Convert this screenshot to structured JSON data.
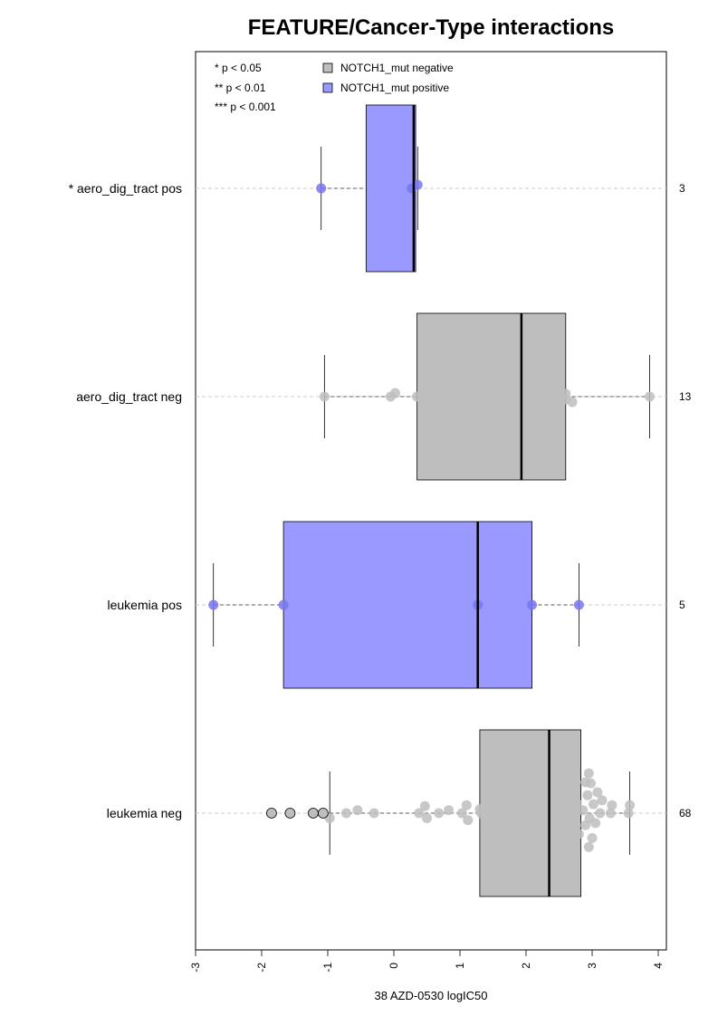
{
  "chart_data": {
    "type": "boxplot",
    "title": "FEATURE/Cancer-Type interactions",
    "xlabel": "38 AZD-0530 logIC50",
    "xlim": [
      -3,
      4
    ],
    "x_ticks": [
      -3,
      -2,
      -1,
      0,
      1,
      2,
      3,
      4
    ],
    "legend": {
      "placement": "top-left",
      "significance": [
        "* p < 0.05",
        "** p < 0.01",
        "*** p < 0.001"
      ],
      "groups": [
        {
          "label": "NOTCH1_mut negative",
          "color": "#bebebe"
        },
        {
          "label": "NOTCH1_mut positive",
          "color": "#9999ff"
        }
      ]
    },
    "boxes": [
      {
        "label": "* aero_dig_tract pos",
        "n": "3",
        "group": "NOTCH1_mut positive",
        "color": "#9999ff",
        "point_color": "#7777ee",
        "min": -1.1,
        "q1": -0.42,
        "median": 0.3,
        "q3": 0.33,
        "max": 0.36,
        "points": [
          {
            "x": -1.1,
            "dy": 0
          },
          {
            "x": 0.27,
            "dy": 0
          },
          {
            "x": 0.36,
            "dy": 0.35
          }
        ],
        "outliers": []
      },
      {
        "label": "aero_dig_tract neg",
        "n": "13",
        "group": "NOTCH1_mut negative",
        "color": "#bebebe",
        "point_color": "#bebebe",
        "min": -1.05,
        "q1": 0.35,
        "median": 1.93,
        "q3": 2.6,
        "max": 3.87,
        "points": [
          {
            "x": -1.05,
            "dy": 0
          },
          {
            "x": -0.05,
            "dy": 0
          },
          {
            "x": 0.02,
            "dy": 0.35
          },
          {
            "x": 0.35,
            "dy": 0
          },
          {
            "x": 1.38,
            "dy": 0
          },
          {
            "x": 1.64,
            "dy": 0
          },
          {
            "x": 1.93,
            "dy": 0
          },
          {
            "x": 2.12,
            "dy": 0
          },
          {
            "x": 2.6,
            "dy": 0.3
          },
          {
            "x": 2.6,
            "dy": -0.3
          },
          {
            "x": 2.53,
            "dy": 0
          },
          {
            "x": 2.7,
            "dy": -0.55
          },
          {
            "x": 3.87,
            "dy": 0
          }
        ],
        "outliers": []
      },
      {
        "label": "leukemia pos",
        "n": "5",
        "group": "NOTCH1_mut positive",
        "color": "#9999ff",
        "point_color": "#7777ee",
        "min": -2.73,
        "q1": -1.67,
        "median": 1.27,
        "q3": 2.09,
        "max": 2.8,
        "points": [
          {
            "x": -2.73,
            "dy": 0
          },
          {
            "x": -1.67,
            "dy": 0
          },
          {
            "x": 1.27,
            "dy": 0
          },
          {
            "x": 2.09,
            "dy": 0
          },
          {
            "x": 2.8,
            "dy": 0
          }
        ],
        "outliers": []
      },
      {
        "label": "leukemia neg",
        "n": "68",
        "group": "NOTCH1_mut negative",
        "color": "#bebebe",
        "point_color": "#bebebe",
        "min": -0.97,
        "q1": 1.3,
        "median": 2.35,
        "q3": 2.83,
        "max": 3.57,
        "outliers": [
          {
            "x": -1.85,
            "dy": 0
          },
          {
            "x": -1.57,
            "dy": 0
          },
          {
            "x": -1.22,
            "dy": 0
          },
          {
            "x": -1.07,
            "dy": 0
          }
        ],
        "points": [
          {
            "x": -0.97,
            "dy": -0.5
          },
          {
            "x": -0.72,
            "dy": 0
          },
          {
            "x": -0.55,
            "dy": 0.3
          },
          {
            "x": -0.3,
            "dy": 0
          },
          {
            "x": 0.38,
            "dy": 0
          },
          {
            "x": 0.47,
            "dy": 0.7
          },
          {
            "x": 0.5,
            "dy": -0.5
          },
          {
            "x": 0.68,
            "dy": 0
          },
          {
            "x": 0.83,
            "dy": 0.3
          },
          {
            "x": 1.03,
            "dy": 0
          },
          {
            "x": 1.1,
            "dy": 0.8
          },
          {
            "x": 1.12,
            "dy": -0.7
          },
          {
            "x": 1.3,
            "dy": 0.4
          },
          {
            "x": 1.32,
            "dy": 0
          },
          {
            "x": 1.38,
            "dy": -0.6
          },
          {
            "x": 1.42,
            "dy": 1.4
          },
          {
            "x": 1.48,
            "dy": 0
          },
          {
            "x": 1.65,
            "dy": -1.2
          },
          {
            "x": 1.7,
            "dy": 0.2
          },
          {
            "x": 1.78,
            "dy": 0.8
          },
          {
            "x": 1.85,
            "dy": -1.2
          },
          {
            "x": 1.9,
            "dy": 1.6
          },
          {
            "x": 1.97,
            "dy": 0
          },
          {
            "x": 2.05,
            "dy": -0.6
          },
          {
            "x": 2.1,
            "dy": 0.5
          },
          {
            "x": 2.15,
            "dy": -1.2
          },
          {
            "x": 2.2,
            "dy": 1.8
          },
          {
            "x": 2.25,
            "dy": 0
          },
          {
            "x": 2.3,
            "dy": -0.6
          },
          {
            "x": 2.36,
            "dy": 0.9
          },
          {
            "x": 2.4,
            "dy": -1.5
          },
          {
            "x": 2.45,
            "dy": 2.1
          },
          {
            "x": 2.5,
            "dy": 0
          },
          {
            "x": 2.53,
            "dy": -2.4
          },
          {
            "x": 2.56,
            "dy": 0.6
          },
          {
            "x": 2.6,
            "dy": -0.8
          },
          {
            "x": 2.64,
            "dy": 1.4
          },
          {
            "x": 2.68,
            "dy": -1.6
          },
          {
            "x": 2.72,
            "dy": 2.5
          },
          {
            "x": 2.73,
            "dy": 0
          },
          {
            "x": 2.77,
            "dy": 1.0
          },
          {
            "x": 2.8,
            "dy": -2.1
          },
          {
            "x": 2.86,
            "dy": 0.3
          },
          {
            "x": 2.9,
            "dy": -1.2
          },
          {
            "x": 2.93,
            "dy": 1.8
          },
          {
            "x": 2.96,
            "dy": -0.5
          },
          {
            "x": 2.98,
            "dy": 3.0
          },
          {
            "x": 3.0,
            "dy": -2.5
          },
          {
            "x": 3.02,
            "dy": 0.9
          },
          {
            "x": 3.05,
            "dy": -1.0
          },
          {
            "x": 3.08,
            "dy": 2.1
          },
          {
            "x": 3.12,
            "dy": 0
          },
          {
            "x": 3.15,
            "dy": 1.3
          },
          {
            "x": 3.28,
            "dy": 0
          },
          {
            "x": 3.3,
            "dy": 0.8
          },
          {
            "x": 3.55,
            "dy": 0
          },
          {
            "x": 3.57,
            "dy": 0.8
          },
          {
            "x": 2.0,
            "dy": 2.6
          },
          {
            "x": 2.7,
            "dy": 3.4
          },
          {
            "x": 2.9,
            "dy": 3.1
          },
          {
            "x": 2.6,
            "dy": -3.2
          },
          {
            "x": 2.95,
            "dy": 4.0
          },
          {
            "x": 2.95,
            "dy": -3.4
          },
          {
            "x": 2.25,
            "dy": 2.6
          }
        ]
      }
    ]
  }
}
